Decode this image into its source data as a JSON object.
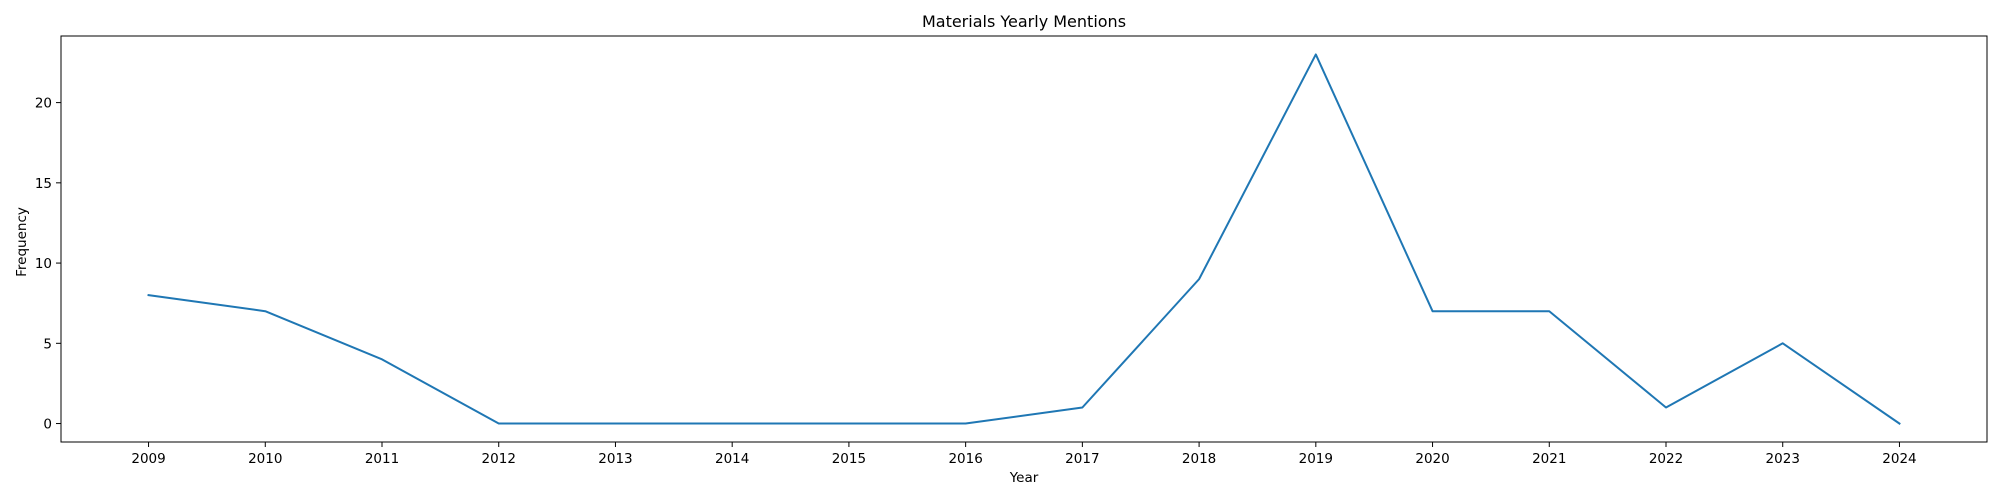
{
  "chart_data": {
    "type": "line",
    "title": "Materials Yearly Mentions",
    "xlabel": "Year",
    "ylabel": "Frequency",
    "x": [
      "2009",
      "2010",
      "2011",
      "2012",
      "2013",
      "2014",
      "2015",
      "2016",
      "2017",
      "2018",
      "2019",
      "2020",
      "2021",
      "2022",
      "2023",
      "2024"
    ],
    "series": [
      {
        "values": [
          8,
          7,
          4,
          0,
          0,
          0,
          0,
          0,
          1,
          9,
          23,
          7,
          7,
          1,
          5,
          0
        ],
        "color": "#1f77b4"
      }
    ],
    "yticks": [
      0,
      5,
      10,
      15,
      20
    ],
    "ylim": [
      -1.15,
      24.15
    ],
    "grid": false,
    "legend": "none"
  }
}
